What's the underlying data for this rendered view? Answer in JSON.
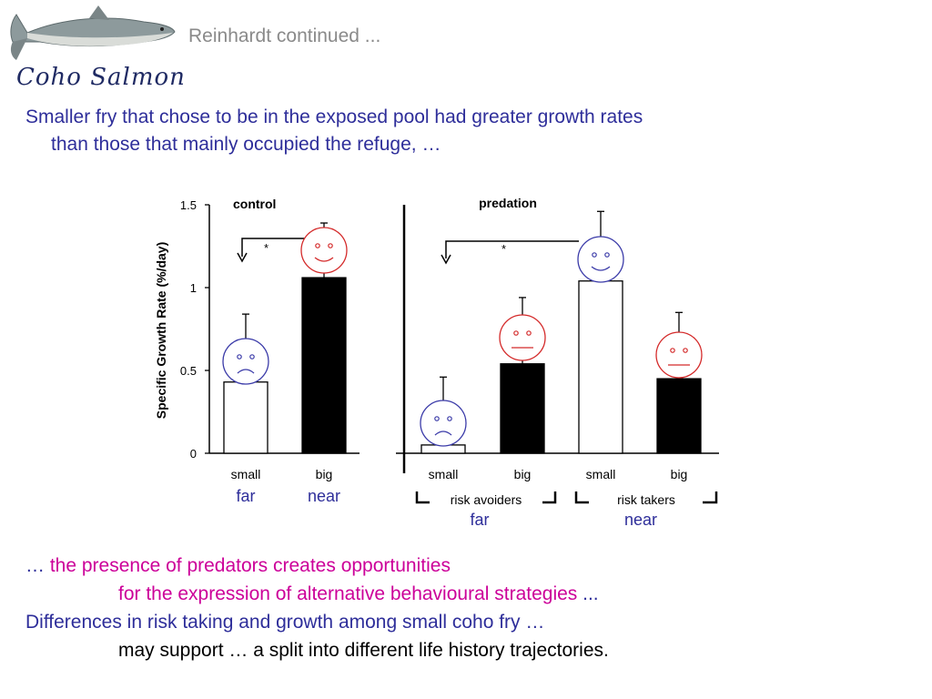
{
  "header": {
    "title": "Reinhardt continued ..."
  },
  "logo": {
    "text": "Coho Salmon",
    "icon": "salmon-fish-icon"
  },
  "intro": {
    "line1": "Smaller fry that chose to be in the exposed pool had greater growth rates",
    "line2": "than those that mainly occupied the refuge,",
    "ellipsis": "…"
  },
  "chart_data": [
    {
      "type": "bar",
      "title": "control",
      "ylabel": "Specific Growth Rate (%/day)",
      "ylim": [
        0,
        1.5
      ],
      "yticks": [
        "0",
        "0.5",
        "1",
        "1.5"
      ],
      "categories": [
        "small",
        "big"
      ],
      "values": [
        0.43,
        1.06
      ],
      "errors": [
        0.41,
        0.33
      ],
      "bar_colors": [
        "#ffffff",
        "#000000"
      ],
      "position_labels": [
        "far",
        "near"
      ],
      "significance": "*",
      "face_icons": [
        "sad-face-icon",
        "happy-face-icon"
      ]
    },
    {
      "type": "bar",
      "title": "predation",
      "ylim": [
        0,
        1.5
      ],
      "categories": [
        "small",
        "big",
        "small",
        "big"
      ],
      "values": [
        0.05,
        0.54,
        1.04,
        0.45
      ],
      "errors": [
        0.41,
        0.4,
        0.42,
        0.4
      ],
      "bar_colors": [
        "#ffffff",
        "#000000",
        "#ffffff",
        "#000000"
      ],
      "group_labels": [
        "risk avoiders",
        "risk takers"
      ],
      "position_labels": [
        "far",
        "near"
      ],
      "significance": "*",
      "face_icons": [
        "sad-face-icon",
        "neutral-face-icon",
        "happy-face-icon",
        "neutral-face-icon"
      ]
    }
  ],
  "conclusion": {
    "ellipsis1": "…",
    "line1": "the presence of predators creates opportunities",
    "line2": "for the expression of alternative behavioural strategies",
    "ellipsis2": "...",
    "line3": "Differences in risk taking and growth among small coho fry",
    "ellipsis3": "…",
    "line4": "may support … a split into different life history trajectories."
  },
  "colors": {
    "blue_text": "#2e2e9a",
    "magenta_text": "#cc0099",
    "face_red": "#d42a2a",
    "face_blue": "#3a3aa8"
  }
}
